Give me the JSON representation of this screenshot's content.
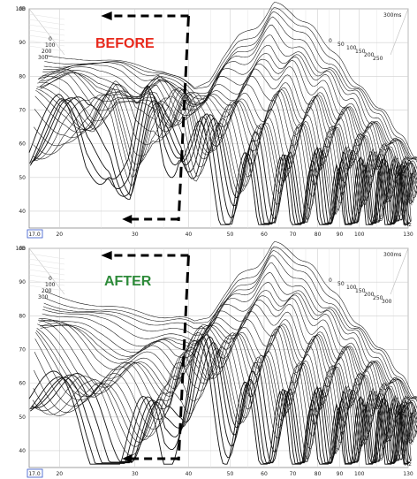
{
  "chart_data": [
    {
      "type": "line",
      "title": "BEFORE",
      "title_color": "#e8291c",
      "y_unit": "dB",
      "x_unit": "Hz",
      "time_unit_label": "300ms",
      "x_scale": "log",
      "xlim": [
        17,
        130
      ],
      "ylim": [
        35,
        100
      ],
      "y_ticks": [
        "100",
        "90",
        "80",
        "70",
        "60",
        "50",
        "40"
      ],
      "x_ticks": [
        "20",
        "30",
        "40",
        "50",
        "60",
        "70",
        "80",
        "90",
        "100",
        "130"
      ],
      "x_start_label": "17.0",
      "left_time_labels": [
        "0",
        "100",
        "200",
        "300"
      ],
      "right_time_labels": [
        "0",
        "50",
        "100",
        "150",
        "200",
        "250"
      ],
      "slice_count": 28,
      "series": [
        {
          "values_db": [
            81,
            81,
            80,
            79,
            78,
            77,
            74,
            70,
            73,
            80,
            86,
            90,
            97,
            94,
            88,
            80,
            70,
            60,
            48
          ]
        },
        {
          "values_db": [
            60,
            62,
            55,
            63,
            50,
            62,
            58,
            66,
            56,
            52,
            48,
            45,
            42,
            40,
            40,
            40,
            40,
            40,
            40
          ]
        }
      ]
    },
    {
      "type": "line",
      "title": "AFTER",
      "title_color": "#2e8b3a",
      "y_unit": "dB",
      "x_unit": "Hz",
      "time_unit_label": "300ms",
      "x_scale": "log",
      "xlim": [
        17,
        130
      ],
      "ylim": [
        35,
        100
      ],
      "y_ticks": [
        "100",
        "90",
        "80",
        "70",
        "60",
        "50",
        "40"
      ],
      "x_ticks": [
        "20",
        "30",
        "40",
        "50",
        "60",
        "70",
        "80",
        "90",
        "100",
        "130"
      ],
      "x_start_label": "17.0",
      "left_time_labels": [
        "0",
        "100",
        "200",
        "300"
      ],
      "right_time_labels": [
        "0",
        "50",
        "100",
        "150",
        "200",
        "250",
        "300"
      ],
      "slice_count": 28,
      "series": [
        {
          "values_db": [
            82,
            80,
            78,
            77,
            76,
            75,
            74,
            72,
            74,
            80,
            86,
            90,
            97,
            94,
            88,
            80,
            70,
            60,
            48
          ]
        },
        {
          "values_db": [
            58,
            50,
            42,
            40,
            40,
            40,
            40,
            55,
            62,
            58,
            52,
            48,
            45,
            42,
            40,
            40,
            40,
            40,
            40
          ]
        }
      ]
    }
  ]
}
